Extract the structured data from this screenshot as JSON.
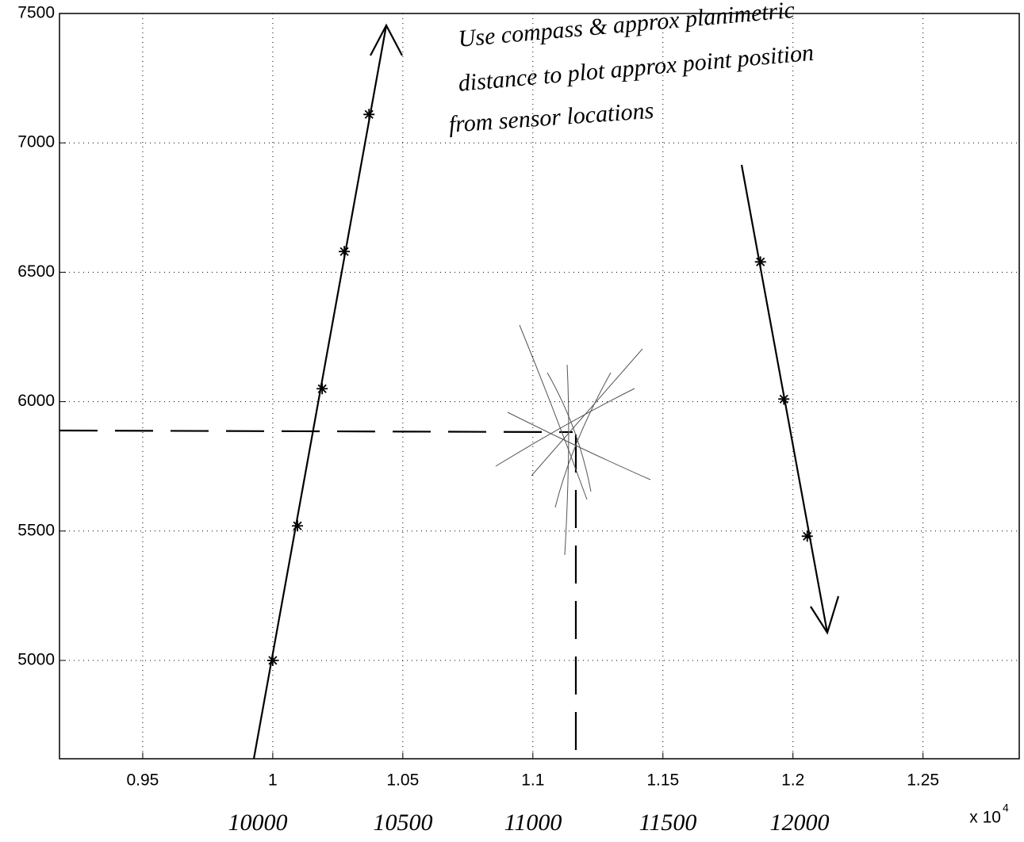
{
  "chart_data": {
    "type": "scatter",
    "xlim": [
      0.918,
      1.287
    ],
    "ylim": [
      4620,
      7500
    ],
    "xticks": [
      0.95,
      1,
      1.05,
      1.1,
      1.15,
      1.2,
      1.25
    ],
    "yticks": [
      5000,
      5500,
      6000,
      6500,
      7000,
      7500
    ],
    "x_multiplier": "x 10",
    "x_multiplier_exp": "4",
    "grid": true,
    "series": [
      {
        "color": "#000000",
        "x": [
          1.0,
          1.0095,
          1.019,
          1.0275,
          1.037
        ],
        "values": [
          5000,
          5520,
          6050,
          6580,
          7110
        ]
      },
      {
        "color": "#000000",
        "x": [
          1.1875,
          1.1965,
          1.2055
        ],
        "values": [
          6540,
          6010,
          5480
        ]
      }
    ],
    "annotations": [
      "Use compass & approx planimetric",
      "distance to plot approx point position",
      "from sensor locations"
    ],
    "handwritten_x_labels": [
      "10000",
      "10500",
      "11000",
      "11500",
      "12000"
    ]
  }
}
